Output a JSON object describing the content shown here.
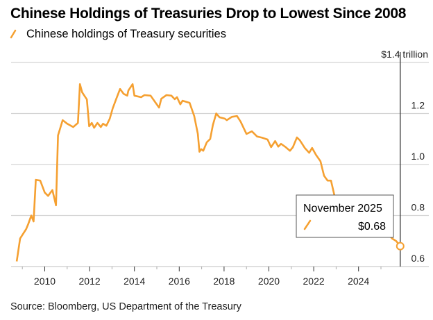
{
  "chart_data": {
    "type": "line",
    "title": "Chinese Holdings of Treasuries Drop to Lowest Since 2008",
    "legend": [
      {
        "label": "Chinese holdings of Treasury securities",
        "color": "#F5A031"
      }
    ],
    "legend_placement": "top-left",
    "ylabel_unit": "$1.4 trillion",
    "y_ticks": [
      "0.6",
      "0.8",
      "1.0",
      "1.2"
    ],
    "ylim": [
      0.6,
      1.4
    ],
    "x_ticks": [
      "2010",
      "2012",
      "2014",
      "2016",
      "2018",
      "2020",
      "2022",
      "2024"
    ],
    "xlim": [
      2008.5,
      2026.2
    ],
    "grid": true,
    "annotation": {
      "label": "November 2025",
      "value": "$0.68",
      "x": 2025.86,
      "y": 0.68
    },
    "source": "Source: Bloomberg, US Department of the Treasury",
    "series": [
      {
        "name": "Chinese holdings of Treasury securities",
        "color": "#F5A031",
        "points": [
          [
            2008.75,
            0.62
          ],
          [
            2008.9,
            0.71
          ],
          [
            2009.17,
            0.747
          ],
          [
            2009.26,
            0.766
          ],
          [
            2009.4,
            0.8
          ],
          [
            2009.5,
            0.777
          ],
          [
            2009.6,
            0.94
          ],
          [
            2009.8,
            0.937
          ],
          [
            2010.0,
            0.89
          ],
          [
            2010.15,
            0.877
          ],
          [
            2010.34,
            0.9
          ],
          [
            2010.5,
            0.84
          ],
          [
            2010.59,
            1.114
          ],
          [
            2010.8,
            1.174
          ],
          [
            2011.0,
            1.16
          ],
          [
            2011.27,
            1.147
          ],
          [
            2011.48,
            1.163
          ],
          [
            2011.57,
            1.315
          ],
          [
            2011.67,
            1.283
          ],
          [
            2011.88,
            1.255
          ],
          [
            2011.98,
            1.15
          ],
          [
            2012.1,
            1.163
          ],
          [
            2012.2,
            1.144
          ],
          [
            2012.35,
            1.163
          ],
          [
            2012.5,
            1.147
          ],
          [
            2012.6,
            1.16
          ],
          [
            2012.75,
            1.152
          ],
          [
            2012.9,
            1.18
          ],
          [
            2013.03,
            1.22
          ],
          [
            2013.18,
            1.255
          ],
          [
            2013.36,
            1.296
          ],
          [
            2013.52,
            1.277
          ],
          [
            2013.68,
            1.27
          ],
          [
            2013.73,
            1.29
          ],
          [
            2013.92,
            1.315
          ],
          [
            2014.0,
            1.27
          ],
          [
            2014.3,
            1.264
          ],
          [
            2014.45,
            1.272
          ],
          [
            2014.72,
            1.27
          ],
          [
            2015.1,
            1.223
          ],
          [
            2015.2,
            1.258
          ],
          [
            2015.43,
            1.272
          ],
          [
            2015.65,
            1.27
          ],
          [
            2015.8,
            1.256
          ],
          [
            2015.9,
            1.264
          ],
          [
            2016.05,
            1.236
          ],
          [
            2016.15,
            1.25
          ],
          [
            2016.46,
            1.242
          ],
          [
            2016.67,
            1.19
          ],
          [
            2016.83,
            1.12
          ],
          [
            2016.9,
            1.05
          ],
          [
            2016.98,
            1.06
          ],
          [
            2017.07,
            1.054
          ],
          [
            2017.23,
            1.087
          ],
          [
            2017.38,
            1.1
          ],
          [
            2017.5,
            1.155
          ],
          [
            2017.65,
            1.2
          ],
          [
            2017.8,
            1.185
          ],
          [
            2018.03,
            1.18
          ],
          [
            2018.12,
            1.174
          ],
          [
            2018.35,
            1.187
          ],
          [
            2018.58,
            1.19
          ],
          [
            2018.74,
            1.168
          ],
          [
            2019.0,
            1.12
          ],
          [
            2019.24,
            1.13
          ],
          [
            2019.47,
            1.11
          ],
          [
            2019.7,
            1.105
          ],
          [
            2019.94,
            1.098
          ],
          [
            2020.1,
            1.068
          ],
          [
            2020.28,
            1.092
          ],
          [
            2020.42,
            1.07
          ],
          [
            2020.54,
            1.081
          ],
          [
            2020.72,
            1.07
          ],
          [
            2020.94,
            1.054
          ],
          [
            2021.07,
            1.068
          ],
          [
            2021.25,
            1.106
          ],
          [
            2021.38,
            1.095
          ],
          [
            2021.6,
            1.065
          ],
          [
            2021.8,
            1.046
          ],
          [
            2021.93,
            1.065
          ],
          [
            2022.1,
            1.038
          ],
          [
            2022.3,
            1.013
          ],
          [
            2022.46,
            0.956
          ],
          [
            2022.62,
            0.937
          ],
          [
            2022.77,
            0.937
          ],
          [
            2022.93,
            0.877
          ],
          [
            2023.2,
            0.86
          ],
          [
            2023.6,
            0.81
          ],
          [
            2024.0,
            0.79
          ],
          [
            2024.5,
            0.77
          ],
          [
            2025.0,
            0.76
          ],
          [
            2025.3,
            0.73
          ],
          [
            2025.5,
            0.71
          ],
          [
            2025.68,
            0.7
          ],
          [
            2025.86,
            0.68
          ]
        ]
      }
    ]
  }
}
